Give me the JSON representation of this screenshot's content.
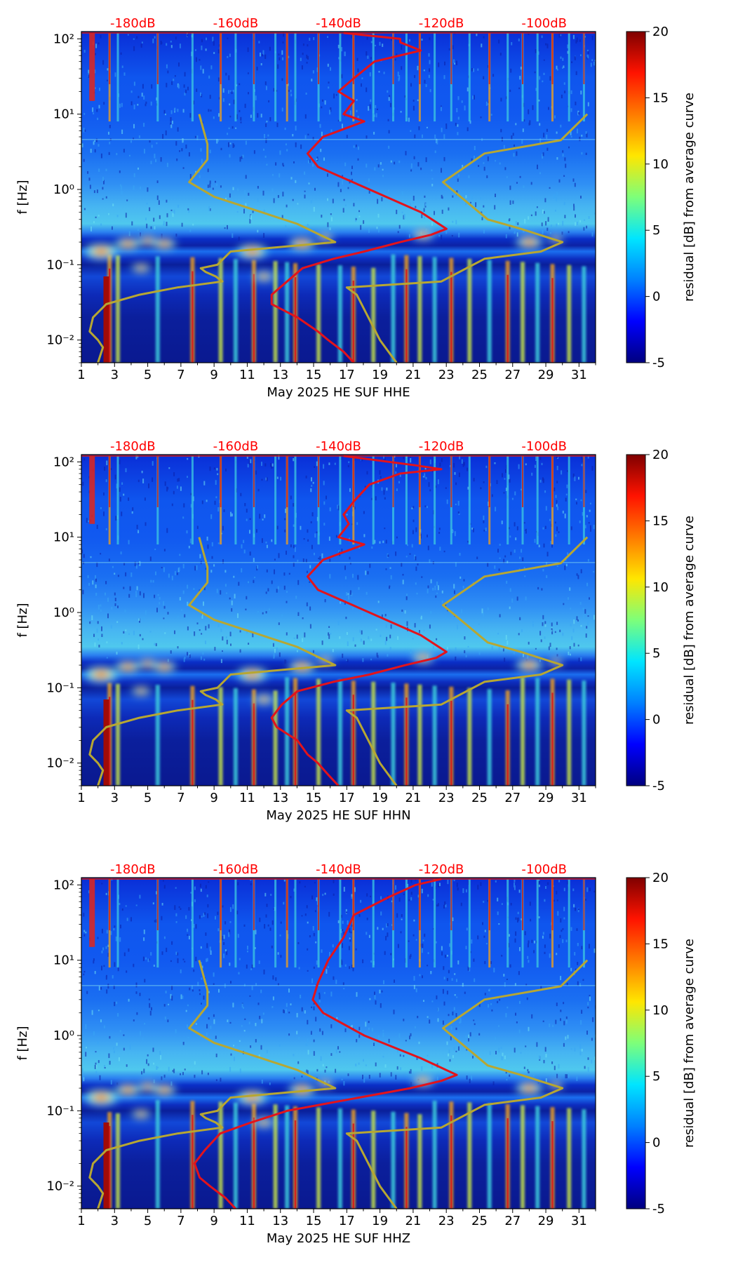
{
  "figure": {
    "colormap": {
      "stops": [
        "#00007f",
        "#0000ff",
        "#0080ff",
        "#00e5ff",
        "#7dff7a",
        "#ffe600",
        "#ff7b00",
        "#ff1300",
        "#7f0000"
      ],
      "min": -5,
      "max": 20
    },
    "colors": {
      "noise_curve": "#b7a732",
      "psd_curve": "#e3131b",
      "db_label": "#ff0000",
      "low_band": "#0c1d6e",
      "band_glow": "#8ee0d7"
    }
  },
  "chart_data": [
    {
      "type": "heatmap",
      "panel_id": "hhe",
      "xlabel": "May 2025 HE SUF  HHE",
      "ylabel": "f [Hz]",
      "colorbar_label": "residual [dB] from average curve",
      "x_range": [
        1,
        32
      ],
      "x_ticks": [
        1,
        3,
        5,
        7,
        9,
        11,
        13,
        15,
        17,
        19,
        21,
        23,
        25,
        27,
        29,
        31
      ],
      "y_scale": "log",
      "y_range": [
        0.005,
        125
      ],
      "y_ticks": [
        {
          "value": 0.01,
          "label": "10⁻²"
        },
        {
          "value": 0.1,
          "label": "10⁻¹"
        },
        {
          "value": 1,
          "label": "10⁰"
        },
        {
          "value": 10,
          "label": "10¹"
        },
        {
          "value": 100,
          "label": "10²"
        }
      ],
      "colorbar_range": [
        -5,
        20
      ],
      "colorbar_ticks": [
        -5,
        0,
        5,
        10,
        15,
        20
      ],
      "db_labels": [
        "-180dB",
        "-160dB",
        "-140dB",
        "-120dB",
        "-100dB"
      ],
      "db_range": [
        -190,
        -90
      ],
      "noise_model": {
        "name": "noise model bounds",
        "low": [
          [
            10,
            8.1
          ],
          [
            4,
            8.6
          ],
          [
            2.5,
            8.6
          ],
          [
            1.25,
            7.5
          ],
          [
            0.8,
            9.0
          ],
          [
            0.35,
            14.0
          ],
          [
            0.2,
            16.3
          ],
          [
            0.15,
            10.0
          ],
          [
            0.1,
            9.2
          ],
          [
            0.09,
            8.2
          ],
          [
            0.08,
            8.5
          ],
          [
            0.07,
            9.1
          ],
          [
            0.06,
            9.5
          ],
          [
            0.05,
            6.8
          ],
          [
            0.04,
            4.5
          ],
          [
            0.03,
            2.5
          ],
          [
            0.02,
            1.7
          ],
          [
            0.013,
            1.5
          ],
          [
            0.01,
            2.0
          ],
          [
            0.008,
            2.3
          ],
          [
            0.005,
            2.0
          ]
        ],
        "high": [
          [
            10,
            31.5
          ],
          [
            4.5,
            29.9
          ],
          [
            3,
            25.3
          ],
          [
            1.25,
            22.8
          ],
          [
            0.4,
            25.5
          ],
          [
            0.3,
            27.5
          ],
          [
            0.2,
            30.0
          ],
          [
            0.15,
            28.7
          ],
          [
            0.12,
            25.3
          ],
          [
            0.06,
            22.7
          ],
          [
            0.05,
            17.0
          ],
          [
            0.04,
            17.6
          ],
          [
            0.01,
            19.0
          ],
          [
            0.005,
            20.0
          ]
        ]
      },
      "psd_curve": {
        "name": "monthly PSD",
        "points": [
          [
            120,
            -139
          ],
          [
            100,
            -128
          ],
          [
            90,
            -128
          ],
          [
            70,
            -124
          ],
          [
            50,
            -133
          ],
          [
            30,
            -137
          ],
          [
            20,
            -140
          ],
          [
            15,
            -137
          ],
          [
            10,
            -139
          ],
          [
            8,
            -135
          ],
          [
            5,
            -143
          ],
          [
            3,
            -146
          ],
          [
            2,
            -144
          ],
          [
            1,
            -134
          ],
          [
            0.5,
            -124
          ],
          [
            0.3,
            -119
          ],
          [
            0.25,
            -122
          ],
          [
            0.2,
            -128
          ],
          [
            0.15,
            -135
          ],
          [
            0.12,
            -141
          ],
          [
            0.09,
            -147
          ],
          [
            0.06,
            -150
          ],
          [
            0.04,
            -153
          ],
          [
            0.03,
            -153
          ],
          [
            0.02,
            -148
          ],
          [
            0.013,
            -144
          ],
          [
            0.01,
            -142
          ],
          [
            0.007,
            -139
          ],
          [
            0.005,
            -137
          ]
        ]
      },
      "vertical_events": [
        2.7,
        3.2,
        5.6,
        7.7,
        9.4,
        10.3,
        11.4,
        12.7,
        13.4,
        13.9,
        15.3,
        16.6,
        17.4,
        18.6,
        19.8,
        20.6,
        21.4,
        22.3,
        23.3,
        24.4,
        25.6,
        26.7,
        27.6,
        28.5,
        29.4,
        30.4,
        31.3
      ],
      "blobs": [
        [
          2.2,
          0.15,
          20
        ],
        [
          3.8,
          0.19,
          15
        ],
        [
          5.0,
          0.21,
          12
        ],
        [
          6.0,
          0.19,
          14
        ],
        [
          4.6,
          0.09,
          11
        ],
        [
          11.3,
          0.15,
          18
        ],
        [
          14.3,
          0.19,
          16
        ],
        [
          15.7,
          0.23,
          10
        ],
        [
          21.6,
          0.25,
          13
        ],
        [
          12.0,
          0.07,
          12
        ],
        [
          28.0,
          0.2,
          16
        ],
        [
          29.6,
          0.22,
          9
        ]
      ]
    },
    {
      "type": "heatmap",
      "panel_id": "hhn",
      "xlabel": "May 2025 HE SUF  HHN",
      "ylabel": "f [Hz]",
      "colorbar_label": "residual [dB] from average curve",
      "x_range": [
        1,
        32
      ],
      "x_ticks": [
        1,
        3,
        5,
        7,
        9,
        11,
        13,
        15,
        17,
        19,
        21,
        23,
        25,
        27,
        29,
        31
      ],
      "y_scale": "log",
      "y_range": [
        0.005,
        125
      ],
      "y_ticks": [
        {
          "value": 0.01,
          "label": "10⁻²"
        },
        {
          "value": 0.1,
          "label": "10⁻¹"
        },
        {
          "value": 1,
          "label": "10⁰"
        },
        {
          "value": 10,
          "label": "10¹"
        },
        {
          "value": 100,
          "label": "10²"
        }
      ],
      "colorbar_range": [
        -5,
        20
      ],
      "colorbar_ticks": [
        -5,
        0,
        5,
        10,
        15,
        20
      ],
      "db_labels": [
        "-180dB",
        "-160dB",
        "-140dB",
        "-120dB",
        "-100dB"
      ],
      "db_range": [
        -190,
        -90
      ],
      "noise_model": {
        "name": "noise model bounds",
        "low": [
          [
            10,
            8.1
          ],
          [
            4,
            8.6
          ],
          [
            2.5,
            8.6
          ],
          [
            1.25,
            7.5
          ],
          [
            0.8,
            9.0
          ],
          [
            0.35,
            14.0
          ],
          [
            0.2,
            16.3
          ],
          [
            0.15,
            10.0
          ],
          [
            0.1,
            9.2
          ],
          [
            0.09,
            8.2
          ],
          [
            0.08,
            8.5
          ],
          [
            0.07,
            9.1
          ],
          [
            0.06,
            9.5
          ],
          [
            0.05,
            6.8
          ],
          [
            0.04,
            4.5
          ],
          [
            0.03,
            2.5
          ],
          [
            0.02,
            1.7
          ],
          [
            0.013,
            1.5
          ],
          [
            0.01,
            2.0
          ],
          [
            0.008,
            2.3
          ],
          [
            0.005,
            2.0
          ]
        ],
        "high": [
          [
            10,
            31.5
          ],
          [
            4.5,
            29.9
          ],
          [
            3,
            25.3
          ],
          [
            1.25,
            22.8
          ],
          [
            0.4,
            25.5
          ],
          [
            0.3,
            27.5
          ],
          [
            0.2,
            30.0
          ],
          [
            0.15,
            28.7
          ],
          [
            0.12,
            25.3
          ],
          [
            0.06,
            22.7
          ],
          [
            0.05,
            17.0
          ],
          [
            0.04,
            17.6
          ],
          [
            0.01,
            19.0
          ],
          [
            0.005,
            20.0
          ]
        ]
      },
      "psd_curve": {
        "name": "monthly PSD",
        "points": [
          [
            120,
            -139
          ],
          [
            90,
            -125
          ],
          [
            80,
            -120
          ],
          [
            70,
            -128
          ],
          [
            50,
            -134
          ],
          [
            30,
            -137
          ],
          [
            20,
            -139
          ],
          [
            15,
            -138
          ],
          [
            10,
            -140
          ],
          [
            8,
            -135
          ],
          [
            5,
            -143
          ],
          [
            3,
            -146
          ],
          [
            2,
            -144
          ],
          [
            1,
            -134
          ],
          [
            0.5,
            -124
          ],
          [
            0.3,
            -119
          ],
          [
            0.25,
            -121
          ],
          [
            0.2,
            -127
          ],
          [
            0.15,
            -134
          ],
          [
            0.12,
            -141
          ],
          [
            0.09,
            -148
          ],
          [
            0.06,
            -151
          ],
          [
            0.04,
            -153
          ],
          [
            0.03,
            -152
          ],
          [
            0.02,
            -148
          ],
          [
            0.013,
            -146
          ],
          [
            0.01,
            -144
          ],
          [
            0.007,
            -142
          ],
          [
            0.005,
            -140
          ]
        ]
      },
      "vertical_events": [
        2.7,
        3.2,
        5.6,
        7.7,
        9.4,
        10.3,
        11.4,
        12.7,
        13.4,
        13.9,
        15.3,
        16.6,
        17.4,
        18.6,
        19.8,
        20.6,
        21.4,
        22.3,
        23.3,
        24.4,
        25.6,
        26.7,
        27.6,
        28.5,
        29.4,
        30.4,
        31.3
      ],
      "blobs": [
        [
          2.2,
          0.15,
          20
        ],
        [
          3.8,
          0.19,
          15
        ],
        [
          5.0,
          0.21,
          12
        ],
        [
          6.0,
          0.19,
          14
        ],
        [
          4.6,
          0.09,
          11
        ],
        [
          11.3,
          0.15,
          18
        ],
        [
          14.3,
          0.19,
          16
        ],
        [
          15.7,
          0.23,
          10
        ],
        [
          21.6,
          0.25,
          13
        ],
        [
          12.0,
          0.07,
          12
        ],
        [
          28.0,
          0.2,
          16
        ],
        [
          29.6,
          0.22,
          9
        ]
      ]
    },
    {
      "type": "heatmap",
      "panel_id": "hhz",
      "xlabel": "May 2025 HE SUF  HHZ",
      "ylabel": "f [Hz]",
      "colorbar_label": "residual [dB] from average curve",
      "x_range": [
        1,
        32
      ],
      "x_ticks": [
        1,
        3,
        5,
        7,
        9,
        11,
        13,
        15,
        17,
        19,
        21,
        23,
        25,
        27,
        29,
        31
      ],
      "y_scale": "log",
      "y_range": [
        0.005,
        125
      ],
      "y_ticks": [
        {
          "value": 0.01,
          "label": "10⁻²"
        },
        {
          "value": 0.1,
          "label": "10⁻¹"
        },
        {
          "value": 1,
          "label": "10⁰"
        },
        {
          "value": 10,
          "label": "10¹"
        },
        {
          "value": 100,
          "label": "10²"
        }
      ],
      "colorbar_range": [
        -5,
        20
      ],
      "colorbar_ticks": [
        -5,
        0,
        5,
        10,
        15,
        20
      ],
      "db_labels": [
        "-180dB",
        "-160dB",
        "-140dB",
        "-120dB",
        "-100dB"
      ],
      "db_range": [
        -190,
        -90
      ],
      "noise_model": {
        "name": "noise model bounds",
        "low": [
          [
            10,
            8.1
          ],
          [
            4,
            8.6
          ],
          [
            2.5,
            8.6
          ],
          [
            1.25,
            7.5
          ],
          [
            0.8,
            9.0
          ],
          [
            0.35,
            14.0
          ],
          [
            0.2,
            16.3
          ],
          [
            0.15,
            10.0
          ],
          [
            0.1,
            9.2
          ],
          [
            0.09,
            8.2
          ],
          [
            0.08,
            8.5
          ],
          [
            0.07,
            9.1
          ],
          [
            0.06,
            9.5
          ],
          [
            0.05,
            6.8
          ],
          [
            0.04,
            4.5
          ],
          [
            0.03,
            2.5
          ],
          [
            0.02,
            1.7
          ],
          [
            0.013,
            1.5
          ],
          [
            0.01,
            2.0
          ],
          [
            0.008,
            2.3
          ],
          [
            0.005,
            2.0
          ]
        ],
        "high": [
          [
            10,
            31.5
          ],
          [
            4.5,
            29.9
          ],
          [
            3,
            25.3
          ],
          [
            1.25,
            22.8
          ],
          [
            0.4,
            25.5
          ],
          [
            0.3,
            27.5
          ],
          [
            0.2,
            30.0
          ],
          [
            0.15,
            28.7
          ],
          [
            0.12,
            25.3
          ],
          [
            0.06,
            22.7
          ],
          [
            0.05,
            17.0
          ],
          [
            0.04,
            17.6
          ],
          [
            0.01,
            19.0
          ],
          [
            0.005,
            20.0
          ]
        ]
      },
      "psd_curve": {
        "name": "monthly PSD",
        "points": [
          [
            120,
            -120
          ],
          [
            100,
            -125
          ],
          [
            70,
            -130
          ],
          [
            40,
            -137
          ],
          [
            20,
            -139
          ],
          [
            10,
            -142
          ],
          [
            5,
            -144
          ],
          [
            3,
            -145
          ],
          [
            2,
            -143
          ],
          [
            1,
            -135
          ],
          [
            0.5,
            -124
          ],
          [
            0.3,
            -117
          ],
          [
            0.25,
            -120
          ],
          [
            0.2,
            -126
          ],
          [
            0.15,
            -136
          ],
          [
            0.1,
            -150
          ],
          [
            0.07,
            -157
          ],
          [
            0.05,
            -163
          ],
          [
            0.03,
            -166
          ],
          [
            0.02,
            -168
          ],
          [
            0.013,
            -167
          ],
          [
            0.01,
            -165
          ],
          [
            0.007,
            -162
          ],
          [
            0.005,
            -160
          ]
        ]
      },
      "vertical_events": [
        2.7,
        3.2,
        5.6,
        7.7,
        9.4,
        10.3,
        11.4,
        12.7,
        13.4,
        13.9,
        15.3,
        16.6,
        17.4,
        18.6,
        19.8,
        20.6,
        21.4,
        22.3,
        23.3,
        24.4,
        25.6,
        26.7,
        27.6,
        28.5,
        29.4,
        30.4,
        31.3
      ],
      "blobs": [
        [
          2.2,
          0.15,
          20
        ],
        [
          3.8,
          0.19,
          15
        ],
        [
          5.0,
          0.21,
          12
        ],
        [
          6.0,
          0.19,
          14
        ],
        [
          4.6,
          0.09,
          11
        ],
        [
          11.3,
          0.15,
          18
        ],
        [
          14.3,
          0.19,
          16
        ],
        [
          15.7,
          0.23,
          10
        ],
        [
          21.6,
          0.25,
          13
        ],
        [
          12.0,
          0.07,
          12
        ],
        [
          28.0,
          0.2,
          16
        ],
        [
          29.6,
          0.22,
          9
        ]
      ]
    }
  ]
}
